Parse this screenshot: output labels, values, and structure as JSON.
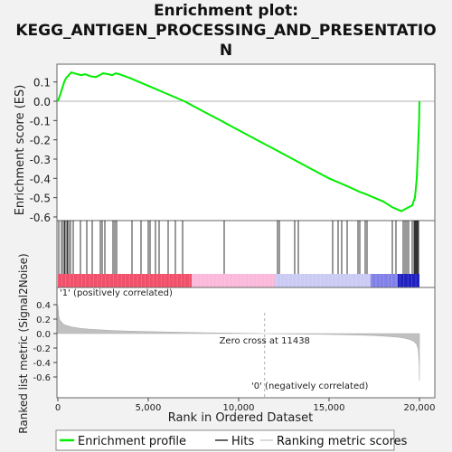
{
  "title_lines": [
    "Enrichment plot:",
    "KEGG_ANTIGEN_PROCESSING_AND_PRESENTATIO",
    "N"
  ],
  "chart_data": {
    "type": "line",
    "title": "Enrichment plot: KEGG_ANTIGEN_PROCESSING_AND_PRESENTATION",
    "xlabel": "Rank in Ordered Dataset",
    "xlim": [
      0,
      20000
    ],
    "x_ticks": [
      "0",
      "5,000",
      "10,000",
      "15,000",
      "20,000"
    ],
    "es_panel": {
      "ylabel": "Enrichment score (ES)",
      "ylim": [
        -0.62,
        0.19
      ],
      "y_ticks": [
        "0.1",
        "0.0",
        "-0.1",
        "-0.2",
        "-0.3",
        "-0.4",
        "-0.5",
        "-0.6"
      ],
      "series": [
        {
          "name": "Enrichment profile",
          "color": "#00ee00",
          "x": [
            0,
            150,
            250,
            350,
            450,
            550,
            650,
            750,
            900,
            1100,
            1300,
            1500,
            1800,
            2100,
            2300,
            2500,
            2800,
            3000,
            3200,
            3400,
            4000,
            5000,
            5500,
            6000,
            7000,
            8000,
            9000,
            10000,
            11000,
            12000,
            13000,
            14000,
            15000,
            16000,
            16700,
            17000,
            18000,
            18500,
            19000,
            19200,
            19400,
            19600,
            19750,
            19850,
            19920,
            19980,
            20000
          ],
          "y": [
            0.0,
            0.04,
            0.07,
            0.1,
            0.12,
            0.13,
            0.14,
            0.15,
            0.145,
            0.14,
            0.135,
            0.14,
            0.13,
            0.125,
            0.135,
            0.145,
            0.14,
            0.135,
            0.145,
            0.14,
            0.12,
            0.08,
            0.06,
            0.04,
            0.0,
            -0.05,
            -0.1,
            -0.15,
            -0.2,
            -0.25,
            -0.3,
            -0.35,
            -0.4,
            -0.44,
            -0.47,
            -0.48,
            -0.52,
            -0.55,
            -0.57,
            -0.56,
            -0.55,
            -0.54,
            -0.5,
            -0.4,
            -0.25,
            -0.1,
            0.0
          ]
        }
      ]
    },
    "hits": [
      50,
      200,
      300,
      380,
      450,
      520,
      600,
      700,
      850,
      1250,
      1600,
      1900,
      2350,
      2450,
      2600,
      3050,
      3150,
      3250,
      4100,
      4600,
      5000,
      5100,
      5400,
      5600,
      6100,
      6500,
      6900,
      9200,
      12150,
      12250,
      13100,
      13300,
      15200,
      15500,
      15700,
      16000,
      16600,
      16700,
      17000,
      17100,
      18500,
      18700,
      19100,
      19200,
      19300,
      19400,
      19600,
      19700,
      19750,
      19800,
      19850,
      19900,
      19950
    ],
    "metric_panel": {
      "ylabel": "Ranked list metric (Signal2Noise)",
      "ylim": [
        -0.65,
        0.48
      ],
      "y_ticks": [
        "0.4",
        "0.2",
        "0.0",
        "-0.2",
        "-0.4",
        "-0.6"
      ],
      "x": [
        0,
        50,
        100,
        200,
        300,
        500,
        800,
        1200,
        1700,
        2300,
        3000,
        4000,
        5000,
        6500,
        8000,
        10000,
        11438,
        13000,
        15000,
        16500,
        17500,
        18300,
        18800,
        19200,
        19500,
        19700,
        19850,
        19930,
        19980,
        20000
      ],
      "y": [
        0.4,
        0.25,
        0.19,
        0.16,
        0.13,
        0.11,
        0.09,
        0.075,
        0.062,
        0.052,
        0.043,
        0.034,
        0.027,
        0.02,
        0.013,
        0.006,
        0.0,
        -0.006,
        -0.013,
        -0.02,
        -0.028,
        -0.04,
        -0.05,
        -0.065,
        -0.085,
        -0.11,
        -0.15,
        -0.22,
        -0.4,
        -0.65
      ]
    },
    "annotations": {
      "pos_label": "'1' (positively correlated)",
      "neg_label": "'0' (negatively correlated)",
      "zero_cross": "Zero cross at 11438",
      "zero_cross_rank": 11438
    },
    "legend": [
      {
        "label": "Enrichment profile",
        "color": "#00ee00"
      },
      {
        "label": "Hits",
        "color": "#000000"
      },
      {
        "label": "Ranking metric scores",
        "color": "#c0c0c0"
      }
    ],
    "grid": false,
    "legend_position": "bottom"
  }
}
